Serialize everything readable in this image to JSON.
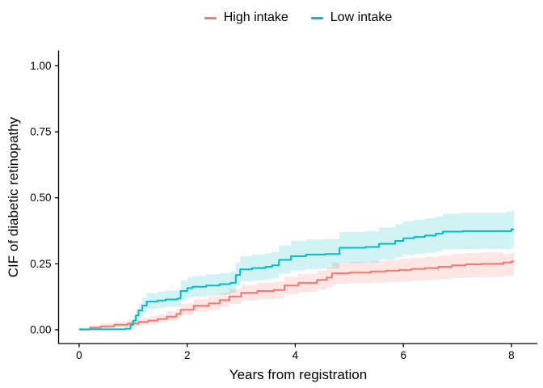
{
  "chart_data": {
    "type": "line",
    "subtype": "step-cumulative-incidence",
    "title": "",
    "xlabel": "Years from registration",
    "ylabel": "CIF of diabetic retinopathy",
    "xlim": [
      -0.38,
      8.48
    ],
    "ylim": [
      -0.052,
      1.058
    ],
    "x_end": 8.05,
    "grid": false,
    "legend_position": "top-center",
    "axis_color": "#000000",
    "x_ticks": {
      "values": [
        0,
        2,
        4,
        6,
        8
      ],
      "labels": [
        "0",
        "2",
        "4",
        "6",
        "8"
      ]
    },
    "y_ticks": {
      "values": [
        0,
        0.25,
        0.5,
        0.75,
        1.0
      ],
      "labels": [
        "0.00",
        "0.25",
        "0.50",
        "0.75",
        "1.00"
      ]
    },
    "series": [
      {
        "name": "High intake",
        "color": "#F8766D",
        "band_color": "rgba(248,118,109,0.18)",
        "points": [
          [
            0.0,
            0.001,
            0.0,
            0.004
          ],
          [
            0.2,
            0.008,
            0.003,
            0.017
          ],
          [
            0.4,
            0.013,
            0.006,
            0.024
          ],
          [
            0.65,
            0.019,
            0.01,
            0.031
          ],
          [
            0.9,
            0.024,
            0.014,
            0.038
          ],
          [
            1.1,
            0.03,
            0.018,
            0.046
          ],
          [
            1.28,
            0.035,
            0.022,
            0.052
          ],
          [
            1.45,
            0.041,
            0.026,
            0.059
          ],
          [
            1.62,
            0.05,
            0.034,
            0.07
          ],
          [
            1.8,
            0.06,
            0.042,
            0.081
          ],
          [
            1.88,
            0.076,
            0.055,
            0.1
          ],
          [
            2.12,
            0.091,
            0.068,
            0.117
          ],
          [
            2.4,
            0.1,
            0.076,
            0.127
          ],
          [
            2.6,
            0.112,
            0.086,
            0.14
          ],
          [
            2.78,
            0.126,
            0.098,
            0.156
          ],
          [
            3.0,
            0.14,
            0.11,
            0.171
          ],
          [
            3.3,
            0.147,
            0.116,
            0.179
          ],
          [
            3.6,
            0.151,
            0.119,
            0.183
          ],
          [
            3.8,
            0.168,
            0.134,
            0.202
          ],
          [
            4.06,
            0.178,
            0.143,
            0.213
          ],
          [
            4.4,
            0.189,
            0.152,
            0.225
          ],
          [
            4.58,
            0.198,
            0.16,
            0.235
          ],
          [
            4.68,
            0.214,
            0.174,
            0.253
          ],
          [
            5.0,
            0.217,
            0.176,
            0.257
          ],
          [
            5.4,
            0.221,
            0.179,
            0.261
          ],
          [
            5.68,
            0.224,
            0.181,
            0.265
          ],
          [
            5.92,
            0.227,
            0.183,
            0.269
          ],
          [
            6.15,
            0.231,
            0.186,
            0.273
          ],
          [
            6.4,
            0.234,
            0.188,
            0.277
          ],
          [
            6.65,
            0.239,
            0.192,
            0.282
          ],
          [
            6.9,
            0.244,
            0.196,
            0.287
          ],
          [
            7.15,
            0.248,
            0.199,
            0.291
          ],
          [
            7.45,
            0.25,
            0.2,
            0.293
          ],
          [
            7.85,
            0.255,
            0.204,
            0.288
          ],
          [
            8.0,
            0.259,
            0.207,
            0.292
          ]
        ]
      },
      {
        "name": "Low intake",
        "color": "#00BFC4",
        "band_color": "rgba(0,191,196,0.18)",
        "points": [
          [
            0.0,
            0.002,
            0.0,
            0.006
          ],
          [
            0.85,
            0.004,
            0.001,
            0.01
          ],
          [
            0.95,
            0.018,
            0.008,
            0.034
          ],
          [
            1.0,
            0.035,
            0.02,
            0.056
          ],
          [
            1.05,
            0.055,
            0.035,
            0.08
          ],
          [
            1.1,
            0.074,
            0.05,
            0.1
          ],
          [
            1.17,
            0.092,
            0.066,
            0.122
          ],
          [
            1.25,
            0.107,
            0.079,
            0.139
          ],
          [
            1.45,
            0.111,
            0.082,
            0.144
          ],
          [
            1.6,
            0.115,
            0.086,
            0.149
          ],
          [
            1.82,
            0.119,
            0.089,
            0.153
          ],
          [
            1.88,
            0.147,
            0.113,
            0.186
          ],
          [
            2.0,
            0.158,
            0.122,
            0.198
          ],
          [
            2.1,
            0.163,
            0.126,
            0.204
          ],
          [
            2.35,
            0.168,
            0.13,
            0.21
          ],
          [
            2.6,
            0.173,
            0.134,
            0.215
          ],
          [
            2.8,
            0.178,
            0.139,
            0.221
          ],
          [
            2.9,
            0.208,
            0.165,
            0.255
          ],
          [
            2.98,
            0.229,
            0.183,
            0.279
          ],
          [
            3.2,
            0.234,
            0.187,
            0.285
          ],
          [
            3.45,
            0.239,
            0.191,
            0.29
          ],
          [
            3.57,
            0.244,
            0.195,
            0.296
          ],
          [
            3.7,
            0.265,
            0.213,
            0.32
          ],
          [
            3.92,
            0.279,
            0.225,
            0.336
          ],
          [
            4.2,
            0.285,
            0.23,
            0.342
          ],
          [
            4.55,
            0.287,
            0.232,
            0.344
          ],
          [
            4.82,
            0.311,
            0.253,
            0.371
          ],
          [
            5.3,
            0.314,
            0.255,
            0.374
          ],
          [
            5.55,
            0.326,
            0.266,
            0.388
          ],
          [
            5.85,
            0.337,
            0.275,
            0.4
          ],
          [
            6.0,
            0.347,
            0.284,
            0.411
          ],
          [
            6.2,
            0.352,
            0.288,
            0.417
          ],
          [
            6.4,
            0.357,
            0.292,
            0.422
          ],
          [
            6.6,
            0.364,
            0.298,
            0.43
          ],
          [
            6.73,
            0.372,
            0.305,
            0.44
          ],
          [
            7.1,
            0.374,
            0.306,
            0.443
          ],
          [
            7.9,
            0.374,
            0.304,
            0.447
          ],
          [
            8.0,
            0.381,
            0.31,
            0.453
          ]
        ]
      }
    ]
  }
}
